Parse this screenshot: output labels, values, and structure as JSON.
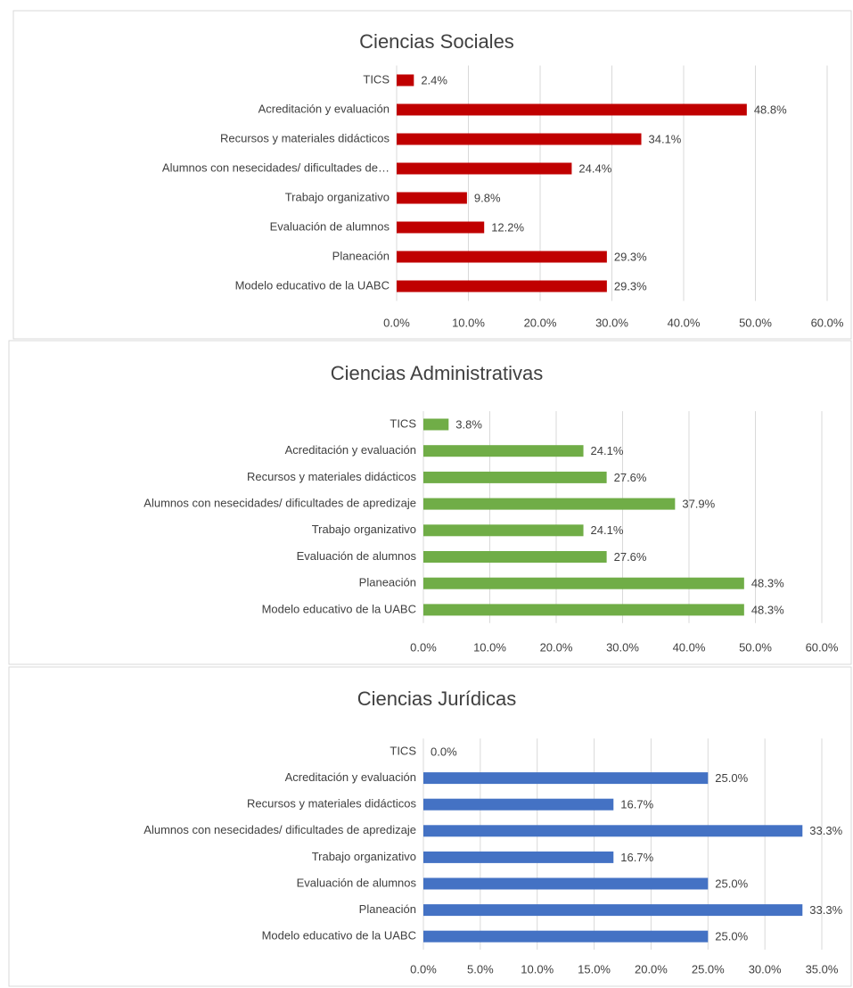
{
  "chart_data": [
    {
      "type": "bar",
      "orientation": "horizontal",
      "title": "Ciencias Sociales",
      "color": "#c00000",
      "grid": true,
      "categories": [
        "TICS",
        "Acreditación y evaluación",
        "Recursos y materiales didácticos",
        "Alumnos con nesecidades/ dificultades de…",
        "Trabajo organizativo",
        "Evaluación de alumnos",
        "Planeación",
        "Modelo educativo de la UABC"
      ],
      "values": [
        2.4,
        48.8,
        34.1,
        24.4,
        9.8,
        12.2,
        29.3,
        29.3
      ],
      "value_labels": [
        "2.4%",
        "48.8%",
        "34.1%",
        "24.4%",
        "9.8%",
        "12.2%",
        "29.3%",
        "29.3%"
      ],
      "xlim": [
        0,
        60
      ],
      "xticks": [
        {
          "value": 0,
          "label": "0.0%"
        },
        {
          "value": 10,
          "label": "10.0%"
        },
        {
          "value": 20,
          "label": "20.0%"
        },
        {
          "value": 30,
          "label": "30.0%"
        },
        {
          "value": 40,
          "label": "40.0%"
        },
        {
          "value": 50,
          "label": "50.0%"
        },
        {
          "value": 60,
          "label": "60.0%"
        }
      ]
    },
    {
      "type": "bar",
      "orientation": "horizontal",
      "title": "Ciencias Administrativas",
      "color": "#70ad47",
      "grid": true,
      "categories": [
        "TICS",
        "Acreditación y evaluación",
        "Recursos y materiales didácticos",
        "Alumnos con nesecidades/ dificultades de apredizaje",
        "Trabajo organizativo",
        "Evaluación de alumnos",
        "Planeación",
        "Modelo educativo de la UABC"
      ],
      "values": [
        3.8,
        24.1,
        27.6,
        37.9,
        24.1,
        27.6,
        48.3,
        48.3
      ],
      "value_labels": [
        "3.8%",
        "24.1%",
        "27.6%",
        "37.9%",
        "24.1%",
        "27.6%",
        "48.3%",
        "48.3%"
      ],
      "xlim": [
        0,
        60
      ],
      "xticks": [
        {
          "value": 0,
          "label": "0.0%"
        },
        {
          "value": 10,
          "label": "10.0%"
        },
        {
          "value": 20,
          "label": "20.0%"
        },
        {
          "value": 30,
          "label": "30.0%"
        },
        {
          "value": 40,
          "label": "40.0%"
        },
        {
          "value": 50,
          "label": "50.0%"
        },
        {
          "value": 60,
          "label": "60.0%"
        }
      ]
    },
    {
      "type": "bar",
      "orientation": "horizontal",
      "title": "Ciencias Jurídicas",
      "color": "#4472c4",
      "grid": true,
      "categories": [
        "TICS",
        "Acreditación y evaluación",
        "Recursos y materiales didácticos",
        "Alumnos con nesecidades/ dificultades de apredizaje",
        "Trabajo organizativo",
        "Evaluación de alumnos",
        "Planeación",
        "Modelo educativo de la UABC"
      ],
      "values": [
        0.0,
        25.0,
        16.7,
        33.3,
        16.7,
        25.0,
        33.3,
        25.0
      ],
      "value_labels": [
        "0.0%",
        "25.0%",
        "16.7%",
        "33.3%",
        "16.7%",
        "25.0%",
        "33.3%",
        "25.0%"
      ],
      "xlim": [
        0,
        35
      ],
      "xticks": [
        {
          "value": 0,
          "label": "0.0%"
        },
        {
          "value": 5,
          "label": "5.0%"
        },
        {
          "value": 10,
          "label": "10.0%"
        },
        {
          "value": 15,
          "label": "15.0%"
        },
        {
          "value": 20,
          "label": "20.0%"
        },
        {
          "value": 25,
          "label": "25.0%"
        },
        {
          "value": 30,
          "label": "30.0%"
        },
        {
          "value": 35,
          "label": "35.0%"
        }
      ]
    }
  ]
}
